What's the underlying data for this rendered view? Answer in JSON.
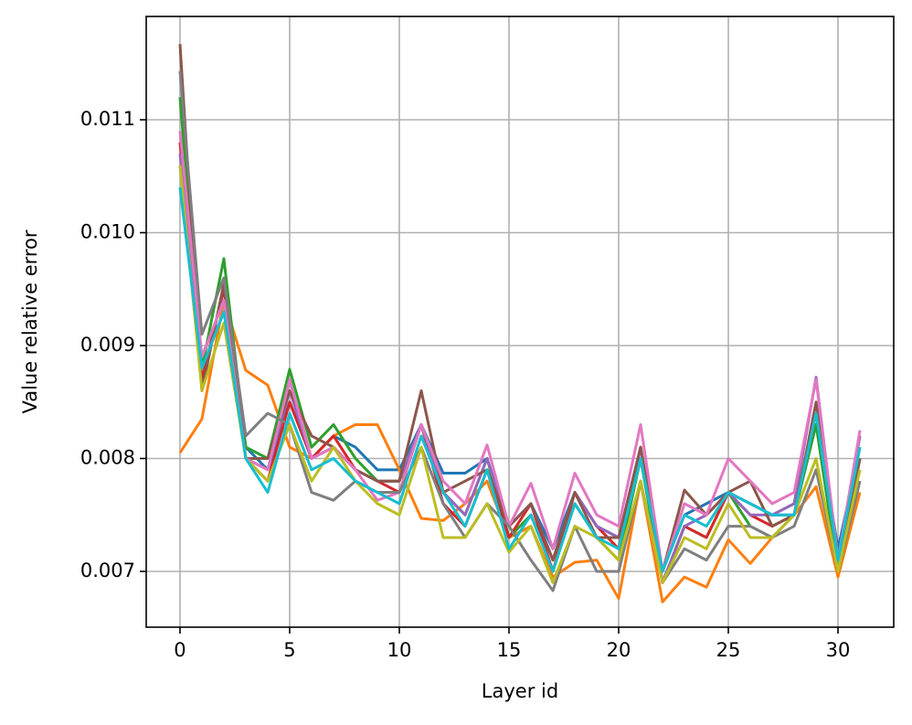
{
  "chart_data": {
    "type": "line",
    "xlabel": "Layer id",
    "ylabel": "Value relative error",
    "x": [
      0,
      1,
      2,
      3,
      4,
      5,
      6,
      7,
      8,
      9,
      10,
      11,
      12,
      13,
      14,
      15,
      16,
      17,
      18,
      19,
      20,
      21,
      22,
      23,
      24,
      25,
      26,
      27,
      28,
      29,
      30,
      31
    ],
    "xlim": [
      -1.54,
      32.54
    ],
    "xticks": [
      0,
      5,
      10,
      15,
      20,
      25,
      30
    ],
    "ylim": [
      0.006506,
      0.011915
    ],
    "yticks": [
      0.007,
      0.008,
      0.009,
      {
        "value": 0.01,
        "label": "0.010"
      },
      0.011
    ],
    "grid": true,
    "series": [
      {
        "color": "#1f77b4",
        "values": [
          0.0106,
          0.0088,
          0.0093,
          0.0081,
          0.0079,
          0.0085,
          0.008,
          0.0082,
          0.0081,
          0.0079,
          0.0079,
          0.0083,
          0.00787,
          0.00787,
          0.008,
          0.0074,
          0.0076,
          0.0072,
          0.0077,
          0.0074,
          0.0073,
          0.008,
          0.007,
          0.0075,
          0.0076,
          0.0077,
          0.0076,
          0.0075,
          0.0075,
          0.0084,
          0.0072,
          0.0081
        ]
      },
      {
        "color": "#ff7f0e",
        "values": [
          0.00805,
          0.00835,
          0.0094,
          0.00878,
          0.00865,
          0.0081,
          0.008,
          0.0082,
          0.0083,
          0.0083,
          0.0079,
          0.00747,
          0.00745,
          0.0076,
          0.0078,
          0.0073,
          0.0074,
          0.00695,
          0.00708,
          0.0071,
          0.00676,
          0.0078,
          0.00673,
          0.00695,
          0.00686,
          0.00728,
          0.00707,
          0.0073,
          0.0075,
          0.00775,
          0.00695,
          0.0077
        ]
      },
      {
        "color": "#2ca02c",
        "values": [
          0.0112,
          0.0088,
          0.00977,
          0.0081,
          0.008,
          0.00879,
          0.0081,
          0.0083,
          0.008,
          0.0078,
          0.0078,
          0.0083,
          0.0077,
          0.0075,
          0.008,
          0.0073,
          0.0075,
          0.007,
          0.0076,
          0.0073,
          0.0071,
          0.008,
          0.0069,
          0.0074,
          0.0073,
          0.0077,
          0.0074,
          0.0073,
          0.0075,
          0.0083,
          0.007,
          0.008
        ]
      },
      {
        "color": "#d62728",
        "values": [
          0.0108,
          0.0087,
          0.0095,
          0.008,
          0.0078,
          0.0085,
          0.008,
          0.0082,
          0.0079,
          0.0078,
          0.0077,
          0.0083,
          0.0076,
          0.0074,
          0.0079,
          0.0073,
          0.0076,
          0.007,
          0.0077,
          0.0074,
          0.0072,
          0.0081,
          0.0069,
          0.0074,
          0.0073,
          0.0077,
          0.0075,
          0.0074,
          0.0075,
          0.0084,
          0.0071,
          0.008
        ]
      },
      {
        "color": "#9467bd",
        "values": [
          0.0107,
          0.0089,
          0.0094,
          0.008,
          0.0079,
          0.0086,
          0.008,
          0.0081,
          0.0079,
          0.0078,
          0.0078,
          0.0083,
          0.0077,
          0.0075,
          0.008,
          0.0074,
          0.0076,
          0.0071,
          0.0077,
          0.0074,
          0.0073,
          0.0081,
          0.0069,
          0.0074,
          0.0075,
          0.0077,
          0.0075,
          0.0075,
          0.0076,
          0.00872,
          0.0071,
          0.0082
        ]
      },
      {
        "color": "#8c564b",
        "values": [
          0.01167,
          0.0086,
          0.00955,
          0.008,
          0.008,
          0.0086,
          0.0082,
          0.0081,
          0.0079,
          0.0078,
          0.0078,
          0.0086,
          0.0077,
          0.0078,
          0.0079,
          0.0074,
          0.0076,
          0.0071,
          0.0077,
          0.0073,
          0.0073,
          0.0081,
          0.007,
          0.00772,
          0.0075,
          0.0077,
          0.0078,
          0.0074,
          0.0075,
          0.0085,
          0.0071,
          0.008
        ]
      },
      {
        "color": "#e377c2",
        "values": [
          0.0109,
          0.0089,
          0.0094,
          0.008,
          0.0079,
          0.0087,
          0.008,
          0.0081,
          0.0079,
          0.00763,
          0.0077,
          0.0083,
          0.0078,
          0.0076,
          0.00812,
          0.0074,
          0.00778,
          0.0072,
          0.00787,
          0.0075,
          0.0074,
          0.0083,
          0.007,
          0.0076,
          0.0075,
          0.008,
          0.0078,
          0.0076,
          0.0077,
          0.0087,
          0.0071,
          0.00825
        ]
      },
      {
        "color": "#7f7f7f",
        "values": [
          0.01143,
          0.0091,
          0.0096,
          0.0082,
          0.0084,
          0.0083,
          0.0077,
          0.00763,
          0.0078,
          0.0077,
          0.0077,
          0.0081,
          0.0076,
          0.0073,
          0.0076,
          0.0074,
          0.0071,
          0.00683,
          0.0074,
          0.007,
          0.007,
          0.0078,
          0.0069,
          0.0072,
          0.0071,
          0.0074,
          0.0074,
          0.0073,
          0.0074,
          0.0079,
          0.007,
          0.0078
        ]
      },
      {
        "color": "#bcbd22",
        "values": [
          0.0106,
          0.0086,
          0.0092,
          0.008,
          0.0078,
          0.0083,
          0.0078,
          0.0081,
          0.0078,
          0.0076,
          0.0075,
          0.0081,
          0.0073,
          0.0073,
          0.0076,
          0.00717,
          0.0074,
          0.0069,
          0.0074,
          0.0073,
          0.0071,
          0.0078,
          0.0069,
          0.0073,
          0.0072,
          0.0076,
          0.0073,
          0.0073,
          0.0075,
          0.008,
          0.007,
          0.0079
        ]
      },
      {
        "color": "#17becf",
        "values": [
          0.0104,
          0.0088,
          0.0093,
          0.008,
          0.0077,
          0.0084,
          0.0079,
          0.008,
          0.0078,
          0.0077,
          0.0076,
          0.0082,
          0.0077,
          0.0074,
          0.0079,
          0.0072,
          0.0075,
          0.007,
          0.0076,
          0.0073,
          0.0072,
          0.008,
          0.007,
          0.0075,
          0.0074,
          0.0077,
          0.0076,
          0.0075,
          0.0075,
          0.0084,
          0.0071,
          0.0081
        ]
      }
    ]
  }
}
